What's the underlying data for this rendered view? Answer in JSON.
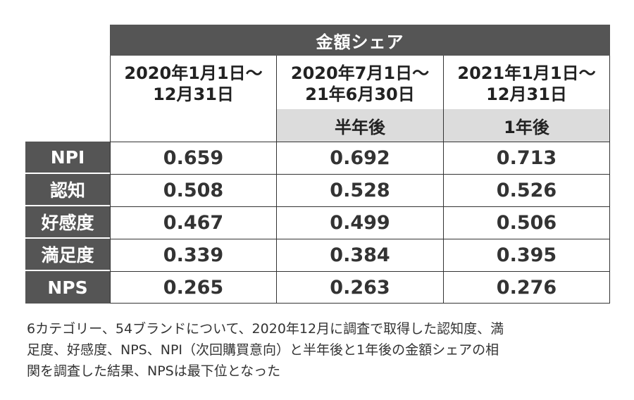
{
  "table": {
    "header": "金額シェア",
    "periods": [
      {
        "line1": "2020年1月1日～",
        "line2": "12月31日",
        "sub": ""
      },
      {
        "line1": "2020年7月1日～",
        "line2": "21年6月30日",
        "sub": "半年後"
      },
      {
        "line1": "2021年1月1日～",
        "line2": "12月31日",
        "sub": "1年後"
      }
    ],
    "rows": [
      {
        "label": "NPI",
        "values": [
          "0.659",
          "0.692",
          "0.713"
        ]
      },
      {
        "label": "認知",
        "values": [
          "0.508",
          "0.528",
          "0.526"
        ]
      },
      {
        "label": "好感度",
        "values": [
          "0.467",
          "0.499",
          "0.506"
        ]
      },
      {
        "label": "満足度",
        "values": [
          "0.339",
          "0.384",
          "0.395"
        ]
      },
      {
        "label": "NPS",
        "values": [
          "0.265",
          "0.263",
          "0.276"
        ]
      }
    ]
  },
  "caption": {
    "line1": "6カテゴリー、54ブランドについて、2020年12月に調査で取得した認知度、満",
    "line2": "足度、好感度、NPS、NPI（次回購買意向）と半年後と1年後の金額シェアの相",
    "line3": "関を調査した結果、NPSは最下位となった"
  }
}
